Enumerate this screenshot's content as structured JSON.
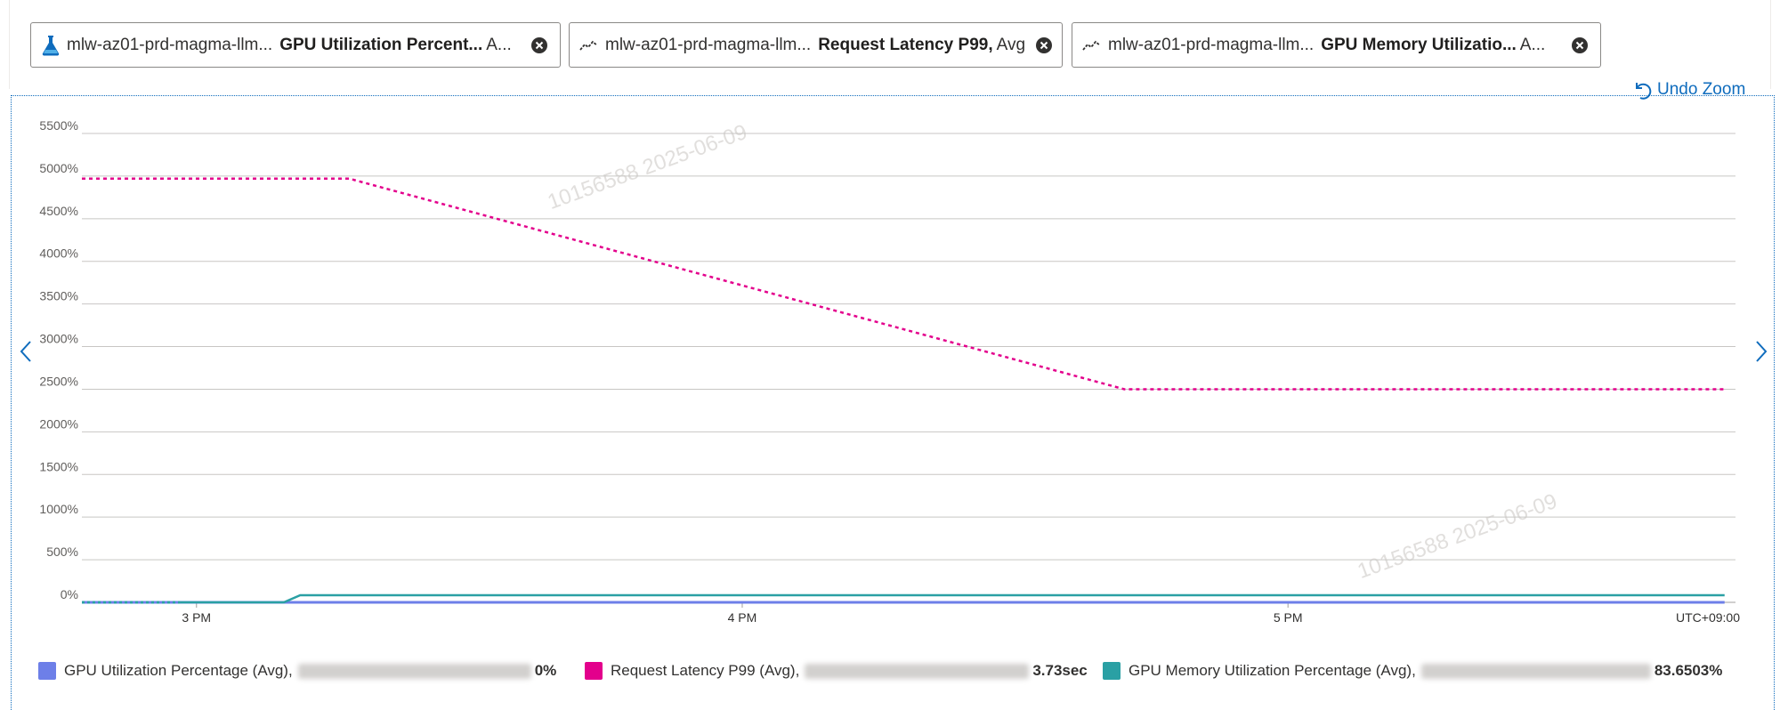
{
  "pills": [
    {
      "resource": "mlw-az01-prd-magma-llm...",
      "metric": "GPU Utilization Percent...",
      "aggregation": "A...",
      "icon": "azure-ml-flask-icon"
    },
    {
      "resource": "mlw-az01-prd-magma-llm...",
      "metric": "Request Latency P99,",
      "aggregation": "Avg",
      "icon": "metric-line-icon"
    },
    {
      "resource": "mlw-az01-prd-magma-llm...",
      "metric": "GPU Memory Utilizatio...",
      "aggregation": "A...",
      "icon": "metric-line-icon"
    }
  ],
  "undo_zoom": "Undo Zoom",
  "watermark": "10156588  2025-06-09",
  "colors": {
    "accent": "#0f6cbd",
    "gpu_util": "#6d7fe8",
    "latency": "#e3008c",
    "gpu_mem": "#2aa0a4",
    "grid": "#c8c6c4"
  },
  "chart_data": {
    "type": "line",
    "y_ticks": [
      "0%",
      "500%",
      "1000%",
      "1500%",
      "2000%",
      "2500%",
      "3000%",
      "3500%",
      "4000%",
      "4500%",
      "5000%",
      "5500%"
    ],
    "ylim": [
      0,
      5500
    ],
    "x_ticks": [
      "3 PM",
      "4 PM",
      "5 PM"
    ],
    "x_tick_values": [
      15,
      16,
      17
    ],
    "xlim": [
      14.79,
      17.82
    ],
    "timezone": "UTC+09:00",
    "grid": true,
    "series": [
      {
        "name": "GPU Utilization Percentage (Avg),",
        "color": "#6d7fe8",
        "style": "solid",
        "points": [
          [
            14.79,
            0
          ],
          [
            17.8,
            0
          ]
        ]
      },
      {
        "name": "Request Latency P99 (Avg),",
        "color": "#e3008c",
        "style": "dotted",
        "points": [
          [
            14.79,
            4970
          ],
          [
            15.28,
            4970
          ],
          [
            16.7,
            2500
          ],
          [
            17.1,
            2500
          ],
          [
            17.8,
            2500
          ]
        ]
      },
      {
        "name": "GPU Memory Utilization Percentage (Avg),",
        "color": "#2aa0a4",
        "style": "solid",
        "points": [
          [
            14.79,
            0
          ],
          [
            14.97,
            0
          ],
          [
            15.16,
            0
          ],
          [
            15.19,
            84
          ],
          [
            17.8,
            84
          ]
        ],
        "dotted_until": 14.97
      }
    ]
  },
  "legend": [
    {
      "label": "GPU Utilization Percentage (Avg),",
      "value": "0%",
      "color": "#6d7fe8"
    },
    {
      "label": "Request Latency P99 (Avg),",
      "value": "3.73sec",
      "color": "#e3008c"
    },
    {
      "label": "GPU Memory Utilization Percentage (Avg),",
      "value": "83.6503%",
      "color": "#2aa0a4"
    }
  ]
}
